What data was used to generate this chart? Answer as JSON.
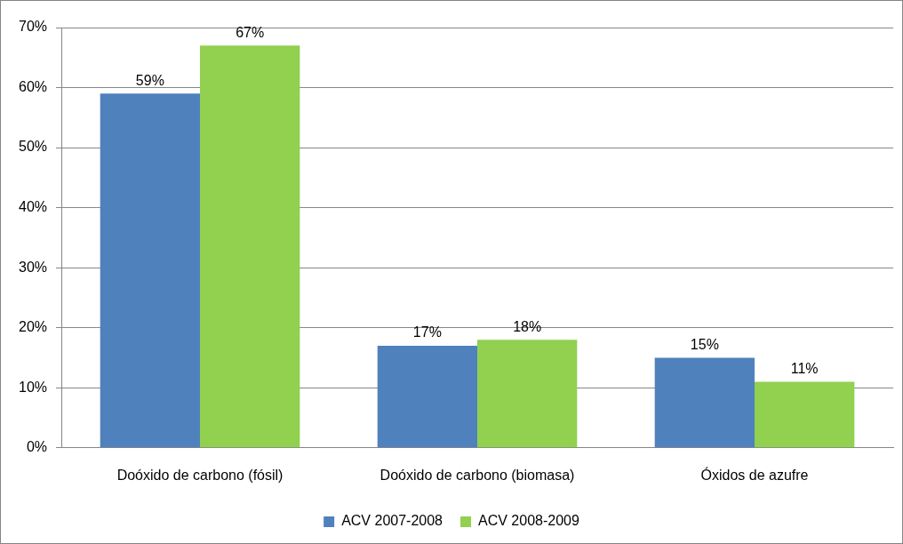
{
  "chart_data": {
    "type": "bar",
    "categories": [
      "Doóxido de carbono (fósil)",
      "Doóxido de carbono (biomasa)",
      "Óxidos de azufre"
    ],
    "series": [
      {
        "name": "ACV 2007-2008",
        "color": "#4f81bd",
        "values": [
          59,
          17,
          15
        ],
        "value_labels": [
          "59%",
          "17%",
          "15%"
        ]
      },
      {
        "name": "ACV 2008-2009",
        "color": "#92d050",
        "values": [
          67,
          18,
          11
        ],
        "value_labels": [
          "67%",
          "18%",
          "11%"
        ]
      }
    ],
    "ylim": [
      0,
      70
    ],
    "yticks": [
      {
        "value": 0,
        "label": "0%"
      },
      {
        "value": 10,
        "label": "10%"
      },
      {
        "value": 20,
        "label": "20%"
      },
      {
        "value": 30,
        "label": "30%"
      },
      {
        "value": 40,
        "label": "40%"
      },
      {
        "value": 50,
        "label": "50%"
      },
      {
        "value": 60,
        "label": "60%"
      },
      {
        "value": 70,
        "label": "70%"
      }
    ],
    "grid": "y",
    "legend": "bottom"
  }
}
